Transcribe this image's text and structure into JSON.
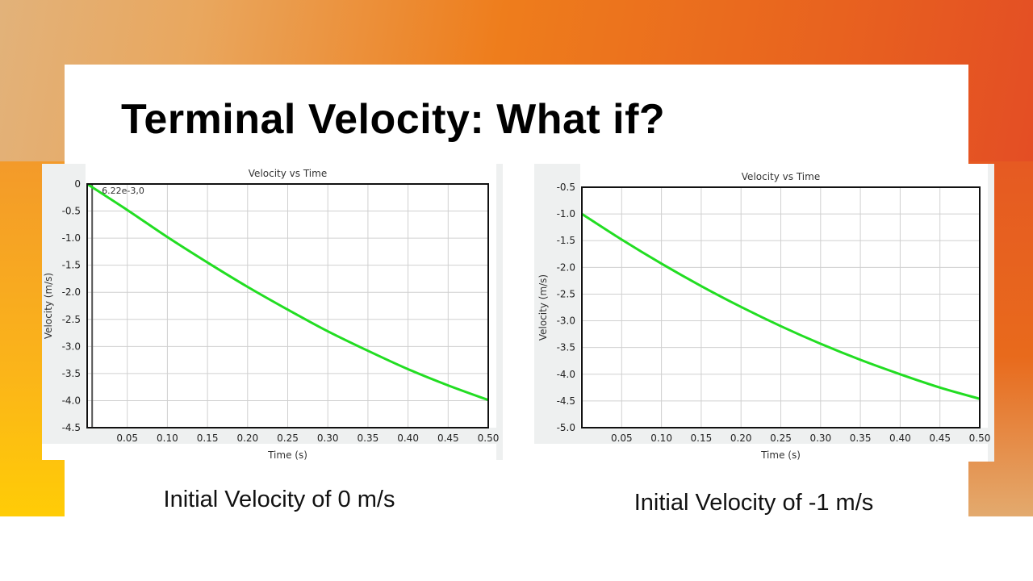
{
  "slide": {
    "title": "Terminal Velocity: What if?",
    "captions": [
      "Initial Velocity of 0 m/s",
      "Initial Velocity of -1 m/s"
    ]
  },
  "colors": {
    "line": "#22dd22",
    "background_orange": "#ee7d1c",
    "background_red": "#e24826",
    "background_yellow": "#ffcc06"
  },
  "chart_data": [
    {
      "type": "line",
      "title": "Velocity vs Time",
      "xlabel": "Time (s)",
      "ylabel": "Velocity (m/s)",
      "xlim": [
        0,
        0.5
      ],
      "ylim": [
        -4.5,
        0
      ],
      "xticks": [
        "0.05",
        "0.10",
        "0.15",
        "0.20",
        "0.25",
        "0.30",
        "0.35",
        "0.40",
        "0.45",
        "0.50"
      ],
      "yticks": [
        "0",
        "-0.5",
        "-1.0",
        "-1.5",
        "-2.0",
        "-2.5",
        "-3.0",
        "-3.5",
        "-4.0",
        "-4.5"
      ],
      "grid": true,
      "cursor": {
        "x": 0.00622,
        "label": "6.22e-3,0"
      },
      "x": [
        0,
        0.05,
        0.1,
        0.15,
        0.2,
        0.25,
        0.3,
        0.35,
        0.4,
        0.45,
        0.5
      ],
      "values": [
        0,
        -0.48,
        -0.98,
        -1.45,
        -1.9,
        -2.32,
        -2.72,
        -3.08,
        -3.42,
        -3.72,
        -3.99
      ]
    },
    {
      "type": "line",
      "title": "Velocity vs Time",
      "xlabel": "Time (s)",
      "ylabel": "Velocity (m/s)",
      "xlim": [
        0,
        0.5
      ],
      "ylim": [
        -5.0,
        -0.5
      ],
      "xticks": [
        "0.05",
        "0.10",
        "0.15",
        "0.20",
        "0.25",
        "0.30",
        "0.35",
        "0.40",
        "0.45",
        "0.50"
      ],
      "yticks": [
        "-0.5",
        "-1.0",
        "-1.5",
        "-2.0",
        "-2.5",
        "-3.0",
        "-3.5",
        "-4.0",
        "-4.5",
        "-5.0"
      ],
      "grid": true,
      "x": [
        0,
        0.05,
        0.1,
        0.15,
        0.2,
        0.25,
        0.3,
        0.35,
        0.4,
        0.45,
        0.5
      ],
      "values": [
        -1.0,
        -1.48,
        -1.93,
        -2.35,
        -2.74,
        -3.1,
        -3.43,
        -3.73,
        -4.0,
        -4.25,
        -4.46
      ]
    }
  ]
}
